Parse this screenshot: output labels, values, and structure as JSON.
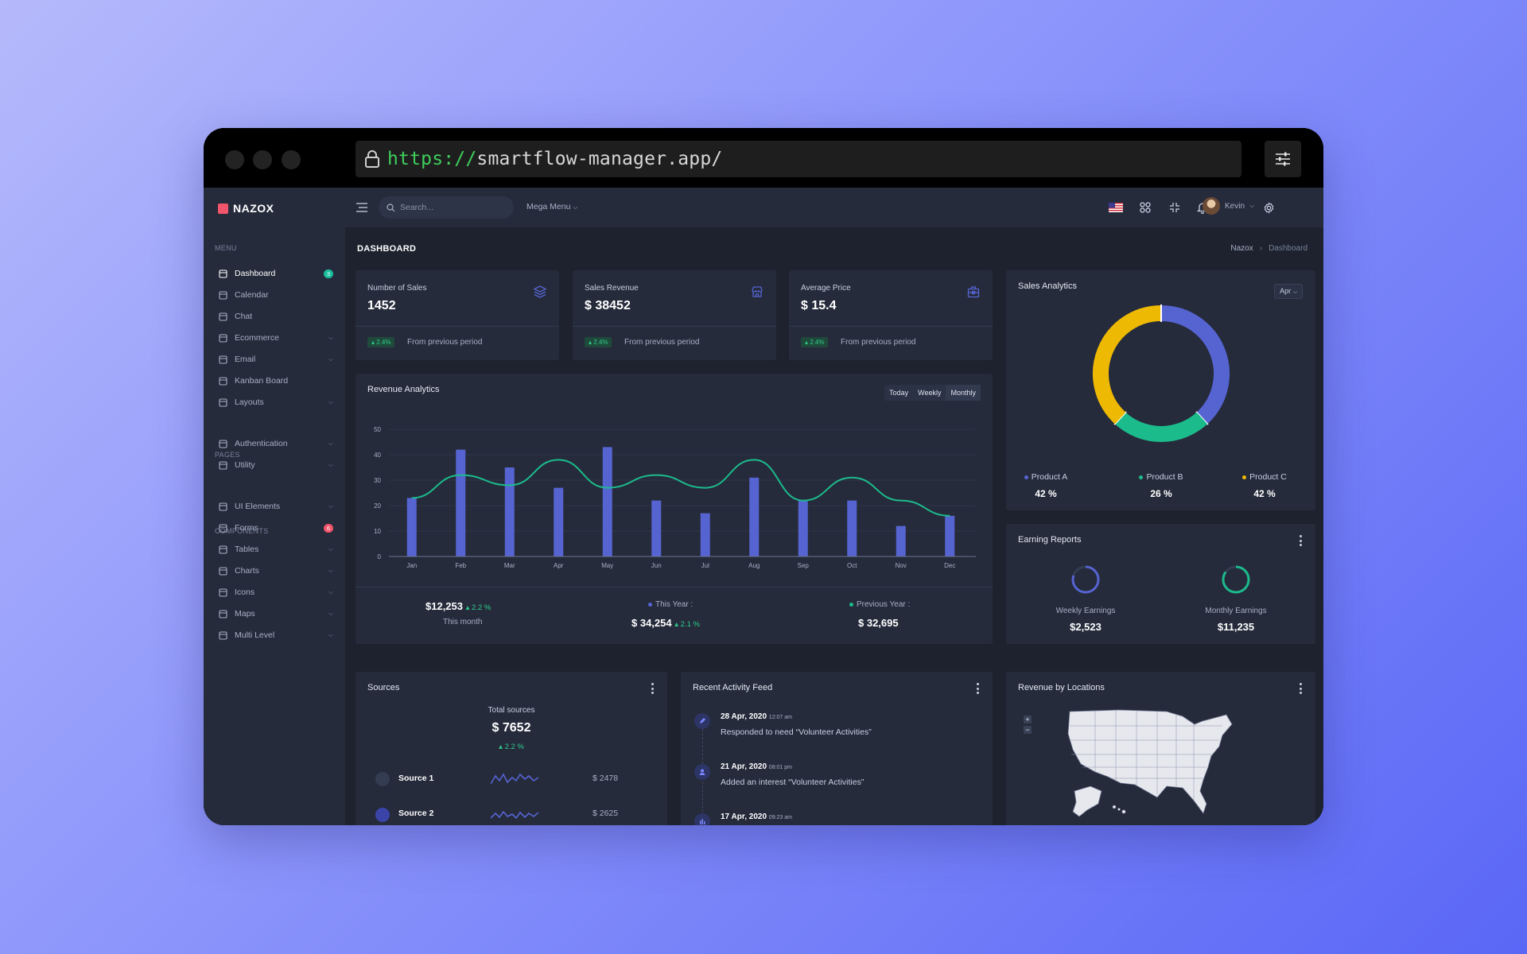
{
  "browser": {
    "url_scheme": "https://",
    "url_host": "smartflow-manager.app/"
  },
  "app": {
    "logo": "NAZOX"
  },
  "sidebar": {
    "sections": {
      "menu": "MENU",
      "pages": "PAGES",
      "components": "COMPONENTS"
    },
    "items": [
      {
        "label": "Dashboard",
        "icon": "dashboard-icon",
        "badge": "3",
        "badge_color": "#1abc9c",
        "active": true
      },
      {
        "label": "Calendar",
        "icon": "calendar-icon"
      },
      {
        "label": "Chat",
        "icon": "chat-icon"
      },
      {
        "label": "Ecommerce",
        "icon": "store-icon",
        "chevron": true
      },
      {
        "label": "Email",
        "icon": "mail-icon",
        "chevron": true
      },
      {
        "label": "Kanban Board",
        "icon": "kanban-icon"
      },
      {
        "label": "Layouts",
        "icon": "layouts-icon",
        "chevron": true
      },
      {
        "label": "Authentication",
        "icon": "user-circle-icon",
        "chevron": true
      },
      {
        "label": "Utility",
        "icon": "utility-icon",
        "chevron": true
      },
      {
        "label": "UI Elements",
        "icon": "pencil-ruler-icon",
        "chevron": true
      },
      {
        "label": "Forms",
        "icon": "eraser-icon",
        "badge": "6",
        "badge_color": "#f1556c"
      },
      {
        "label": "Tables",
        "icon": "table-icon",
        "chevron": true
      },
      {
        "label": "Charts",
        "icon": "bar-chart-icon",
        "chevron": true
      },
      {
        "label": "Icons",
        "icon": "brush-icon",
        "chevron": true
      },
      {
        "label": "Maps",
        "icon": "map-pin-icon",
        "chevron": true
      },
      {
        "label": "Multi Level",
        "icon": "share-icon",
        "chevron": true
      }
    ]
  },
  "topbar": {
    "search_placeholder": "Search...",
    "mega_menu": "Mega Menu",
    "user_name": "Kevin",
    "icons": [
      "us-flag-icon",
      "apps-grid-icon",
      "fullscreen-icon",
      "bell-icon",
      "gear-icon"
    ]
  },
  "page": {
    "title": "DASHBOARD",
    "breadcrumb": [
      "Nazox",
      "Dashboard"
    ]
  },
  "stats": [
    {
      "label": "Number of Sales",
      "value": "1452",
      "change": "2.4%",
      "foot": "From previous period",
      "icon": "layers-icon"
    },
    {
      "label": "Sales Revenue",
      "value": "$ 38452",
      "change": "2.4%",
      "foot": "From previous period",
      "icon": "store-icon"
    },
    {
      "label": "Average Price",
      "value": "$ 15.4",
      "change": "2.4%",
      "foot": "From previous period",
      "icon": "briefcase-icon"
    }
  ],
  "revenue": {
    "title": "Revenue Analytics",
    "tabs": [
      "Today",
      "Weekly",
      "Monthly"
    ],
    "footer": {
      "month_value": "$12,253",
      "month_change": "2.2 %",
      "month_label": "This month",
      "this_year_label": "This Year :",
      "this_year_value": "$ 34,254",
      "this_year_change": "2.1 %",
      "prev_year_label": "Previous Year :",
      "prev_year_value": "$ 32,695"
    }
  },
  "chart_data": [
    {
      "type": "bar",
      "title": "Revenue Analytics",
      "categories": [
        "Jan",
        "Feb",
        "Mar",
        "Apr",
        "May",
        "Jun",
        "Jul",
        "Aug",
        "Sep",
        "Oct",
        "Nov",
        "Dec"
      ],
      "series": [
        {
          "type": "bar",
          "values": [
            23,
            42,
            35,
            27,
            43,
            22,
            17,
            31,
            22,
            22,
            12,
            16
          ],
          "color": "#5664d2"
        },
        {
          "type": "line",
          "values": [
            23,
            32,
            28,
            38,
            27,
            32,
            27,
            38,
            22,
            31,
            22,
            16
          ],
          "color": "#1cbb8c"
        }
      ],
      "ylim": [
        0,
        50
      ],
      "yticks": [
        0,
        10,
        20,
        30,
        40,
        50
      ],
      "grid": true
    },
    {
      "type": "pie",
      "title": "Sales Analytics",
      "categories": [
        "Product A",
        "Product B",
        "Product C"
      ],
      "values": [
        42,
        26,
        42
      ],
      "labels": [
        "42 %",
        "26 %",
        "42 %"
      ],
      "colors": [
        "#5664d2",
        "#1cbb8c",
        "#eeb902"
      ]
    }
  ],
  "sales_analytics": {
    "title": "Sales Analytics",
    "select": "Apr"
  },
  "earning": {
    "title": "Earning Reports",
    "items": [
      {
        "label": "Weekly Earnings",
        "value": "$2,523",
        "progress": 0.8,
        "color": "#5664d2"
      },
      {
        "label": "Monthly Earnings",
        "value": "$11,235",
        "progress": 0.85,
        "color": "#1cbb8c"
      }
    ]
  },
  "sources": {
    "title": "Sources",
    "total_label": "Total sources",
    "total_value": "$ 7652",
    "total_change": "2.2 %",
    "rows": [
      {
        "name": "Source 1",
        "amount": "$ 2478",
        "icon": "source-1-icon"
      },
      {
        "name": "Source 2",
        "amount": "$ 2625",
        "icon": "source-2-icon"
      }
    ]
  },
  "activity": {
    "title": "Recent Activity Feed",
    "items": [
      {
        "date": "28 Apr, 2020",
        "time": "12:07 am",
        "text": "Responded to need “Volunteer Activities”",
        "icon": "edit-icon"
      },
      {
        "date": "21 Apr, 2020",
        "time": "08:01 pm",
        "text": "Added an interest “Volunteer Activities”",
        "icon": "user-icon"
      },
      {
        "date": "17 Apr, 2020",
        "time": "09:23 am",
        "text": "",
        "icon": "bar-icon"
      }
    ]
  },
  "locations": {
    "title": "Revenue by Locations",
    "zoom_in": "+",
    "zoom_out": "−"
  }
}
